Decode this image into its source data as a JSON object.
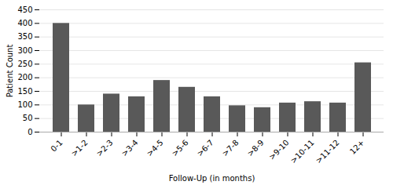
{
  "chart_data": {
    "type": "bar",
    "categories": [
      "0-1",
      ">1-2",
      ">2-3",
      ">3-4",
      ">4-5",
      ">5-6",
      ">6-7",
      ">7-8",
      ">8-9",
      ">9-10",
      ">10-11",
      ">11-12",
      "12+"
    ],
    "values": [
      400,
      100,
      140,
      130,
      190,
      165,
      130,
      97,
      90,
      107,
      112,
      107,
      255
    ],
    "color": "#595959",
    "xlabel": "Follow-Up (in months)",
    "ylabel": "Patient Count",
    "ylim": [
      0,
      450
    ],
    "yticks": [
      0,
      50,
      100,
      150,
      200,
      250,
      300,
      350,
      400,
      450
    ],
    "grid": true
  }
}
